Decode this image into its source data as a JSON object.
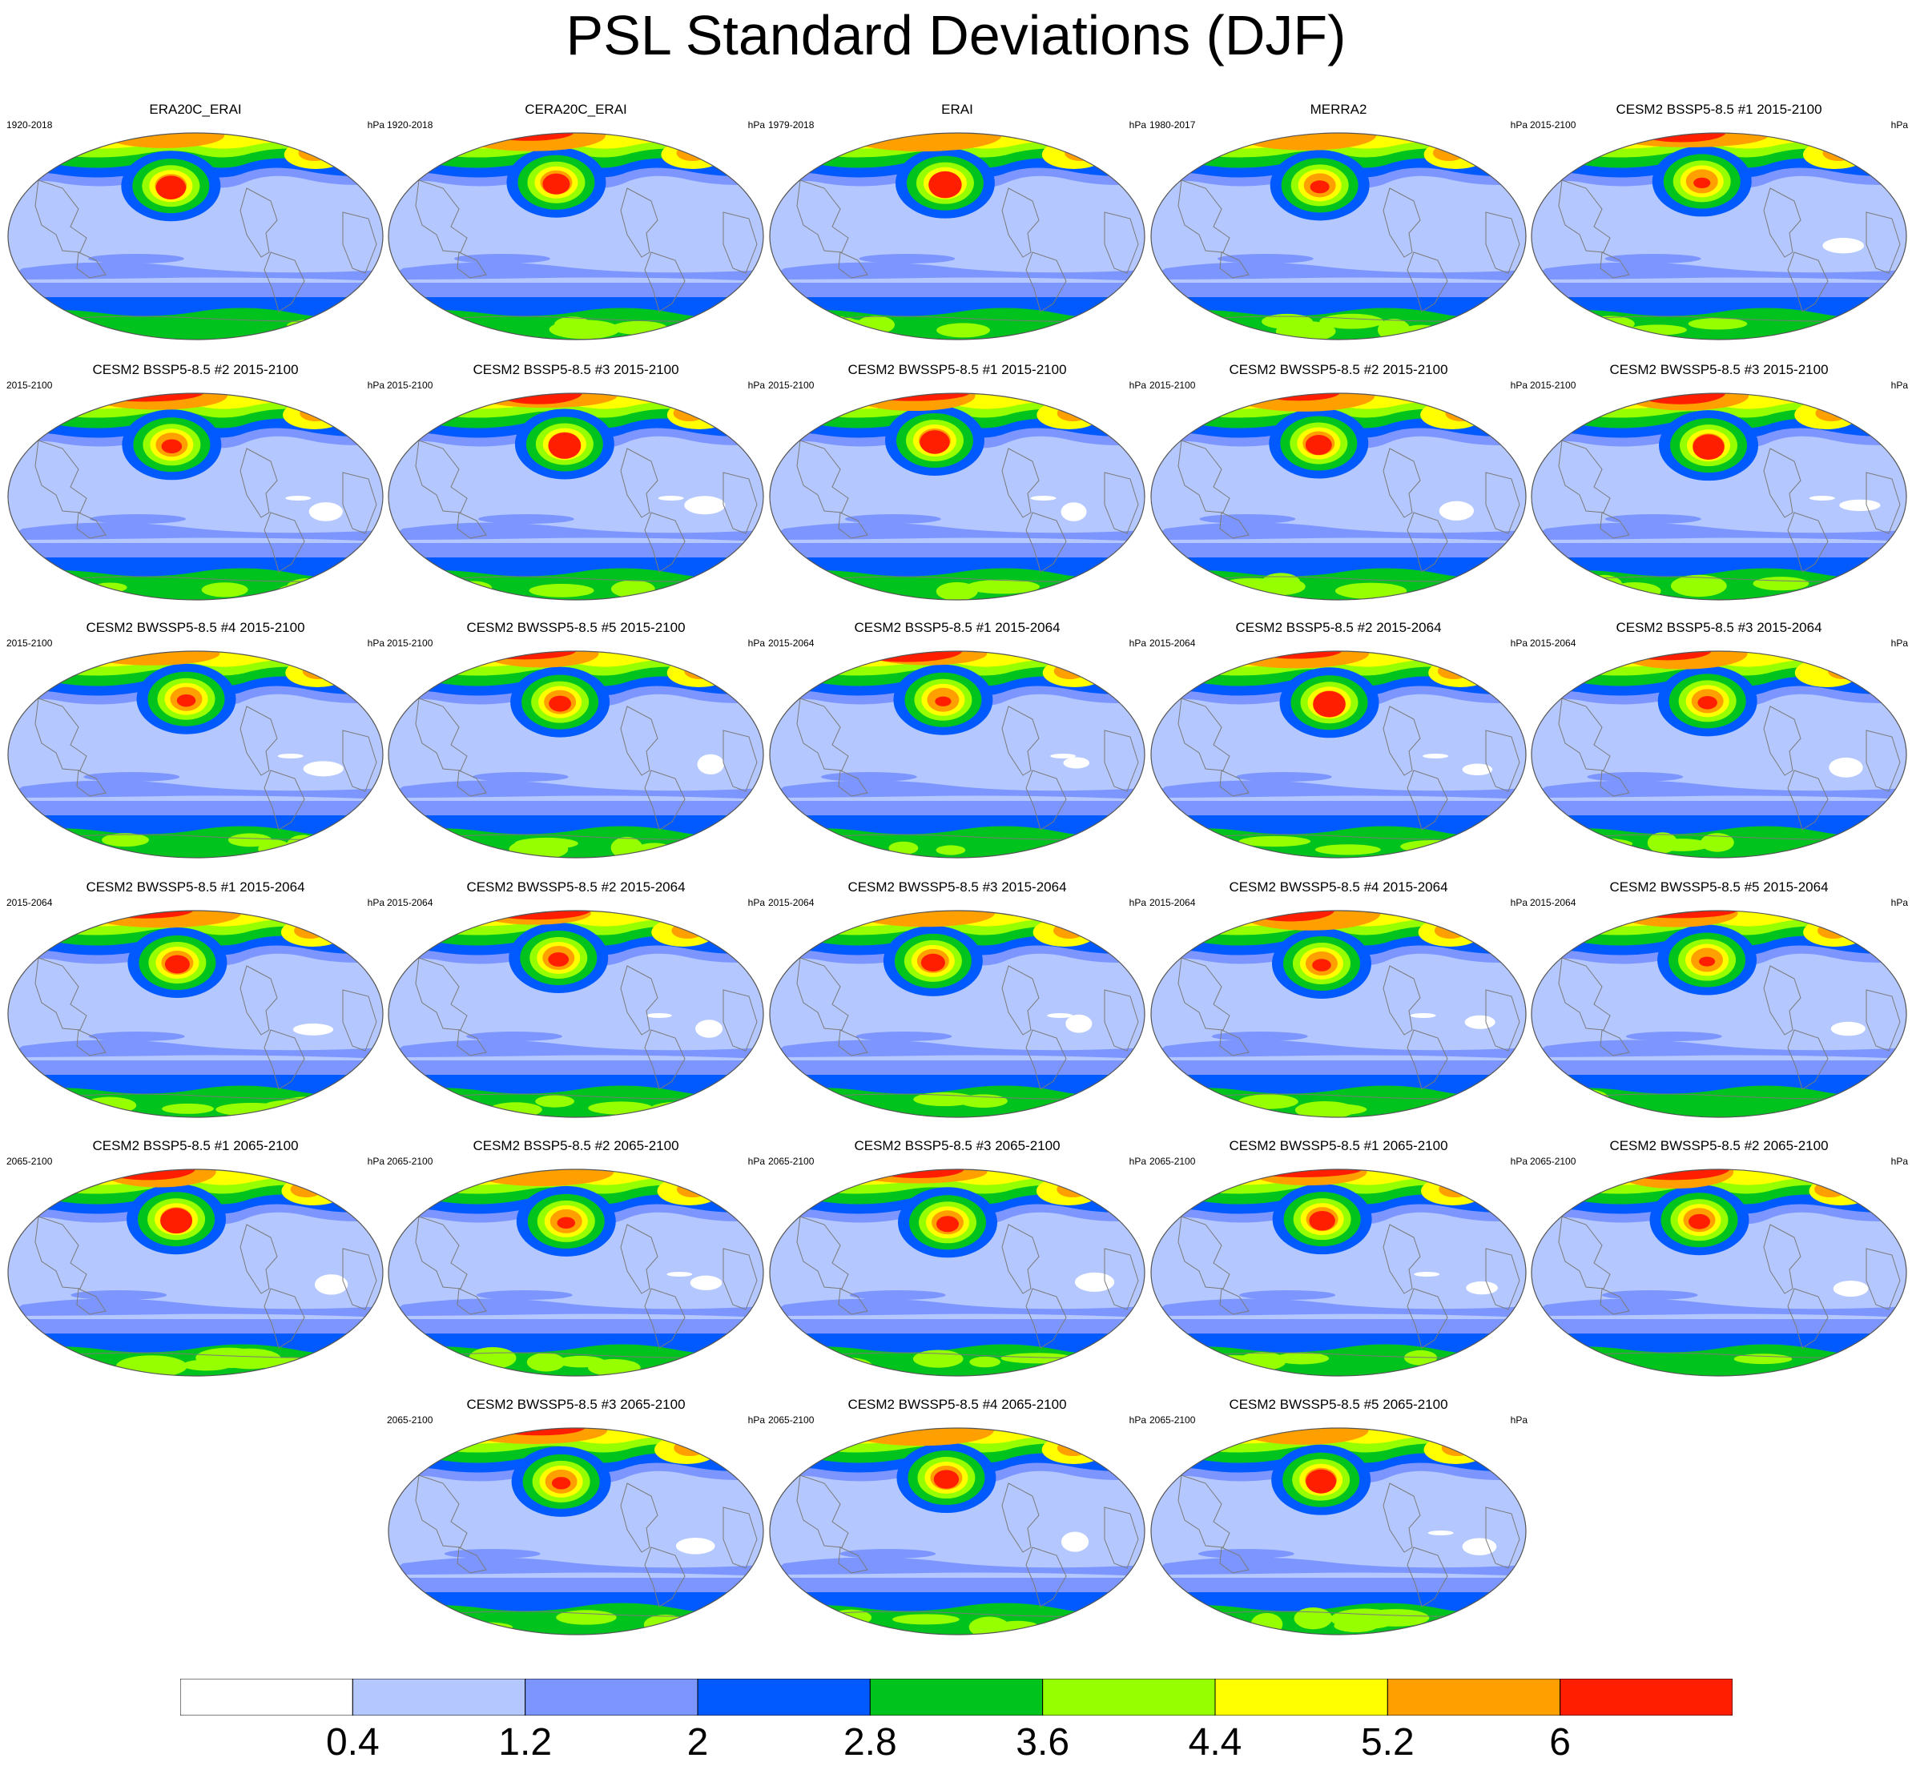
{
  "title": "PSL Standard Deviations (DJF)",
  "units": "hPa",
  "colorbar": {
    "colors": [
      "#ffffff",
      "#b4c8ff",
      "#7d96ff",
      "#005aff",
      "#00c31e",
      "#96ff00",
      "#ffff00",
      "#ffa000",
      "#ff1e00"
    ],
    "labels": [
      "0.4",
      "1.2",
      "2",
      "2.8",
      "3.6",
      "4.4",
      "5.2",
      "6"
    ]
  },
  "panels": [
    {
      "title": "ERA20C_ERAI",
      "period": "1920-2018"
    },
    {
      "title": "CERA20C_ERAI",
      "period": "1920-2018"
    },
    {
      "title": "ERAI",
      "period": "1979-2018"
    },
    {
      "title": "MERRA2",
      "period": "1980-2017"
    },
    {
      "title": "CESM2 BSSP5-8.5 #1 2015-2100",
      "period": "2015-2100"
    },
    {
      "title": "CESM2 BSSP5-8.5 #2 2015-2100",
      "period": "2015-2100"
    },
    {
      "title": "CESM2 BSSP5-8.5 #3 2015-2100",
      "period": "2015-2100"
    },
    {
      "title": "CESM2 BWSSP5-8.5 #1 2015-2100",
      "period": "2015-2100"
    },
    {
      "title": "CESM2 BWSSP5-8.5 #2 2015-2100",
      "period": "2015-2100"
    },
    {
      "title": "CESM2 BWSSP5-8.5 #3 2015-2100",
      "period": "2015-2100"
    },
    {
      "title": "CESM2 BWSSP5-8.5 #4 2015-2100",
      "period": "2015-2100"
    },
    {
      "title": "CESM2 BWSSP5-8.5 #5 2015-2100",
      "period": "2015-2100"
    },
    {
      "title": "CESM2 BSSP5-8.5 #1 2015-2064",
      "period": "2015-2064"
    },
    {
      "title": "CESM2 BSSP5-8.5 #2 2015-2064",
      "period": "2015-2064"
    },
    {
      "title": "CESM2 BSSP5-8.5 #3 2015-2064",
      "period": "2015-2064"
    },
    {
      "title": "CESM2 BWSSP5-8.5 #1 2015-2064",
      "period": "2015-2064"
    },
    {
      "title": "CESM2 BWSSP5-8.5 #2 2015-2064",
      "period": "2015-2064"
    },
    {
      "title": "CESM2 BWSSP5-8.5 #3 2015-2064",
      "period": "2015-2064"
    },
    {
      "title": "CESM2 BWSSP5-8.5 #4 2015-2064",
      "period": "2015-2064"
    },
    {
      "title": "CESM2 BWSSP5-8.5 #5 2015-2064",
      "period": "2015-2064"
    },
    {
      "title": "CESM2 BSSP5-8.5 #1 2065-2100",
      "period": "2065-2100"
    },
    {
      "title": "CESM2 BSSP5-8.5 #2 2065-2100",
      "period": "2065-2100"
    },
    {
      "title": "CESM2 BSSP5-8.5 #3 2065-2100",
      "period": "2065-2100"
    },
    {
      "title": "CESM2 BWSSP5-8.5 #1 2065-2100",
      "period": "2065-2100"
    },
    {
      "title": "CESM2 BWSSP5-8.5 #2 2065-2100",
      "period": "2065-2100"
    },
    {
      "title": "CESM2 BWSSP5-8.5 #3 2065-2100",
      "period": "2065-2100"
    },
    {
      "title": "CESM2 BWSSP5-8.5 #4 2065-2100",
      "period": "2065-2100"
    },
    {
      "title": "CESM2 BWSSP5-8.5 #5 2065-2100",
      "period": "2065-2100"
    }
  ]
}
